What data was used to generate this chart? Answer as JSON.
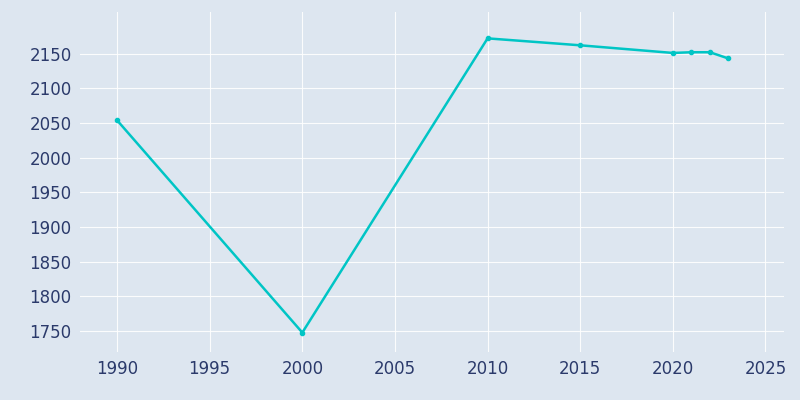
{
  "years": [
    1990,
    2000,
    2010,
    2015,
    2020,
    2021,
    2022,
    2023
  ],
  "population": [
    2054,
    1748,
    2172,
    2162,
    2151,
    2152,
    2152,
    2143
  ],
  "line_color": "#00C5C5",
  "bg_color": "#DDE6F0",
  "xlim": [
    1988,
    2026
  ],
  "ylim": [
    1720,
    2210
  ],
  "xticks": [
    1990,
    1995,
    2000,
    2005,
    2010,
    2015,
    2020,
    2025
  ],
  "yticks": [
    1750,
    1800,
    1850,
    1900,
    1950,
    2000,
    2050,
    2100,
    2150
  ],
  "tick_color": "#2B3A6B",
  "grid_color": "#FFFFFF",
  "label_fontsize": 12
}
